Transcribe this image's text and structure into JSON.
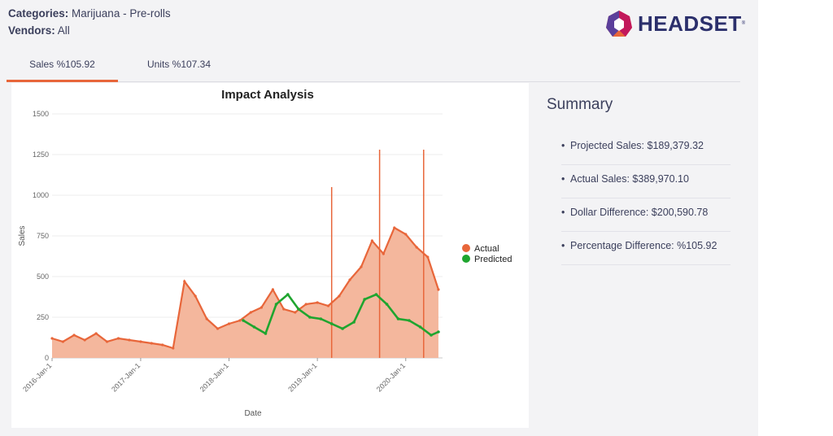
{
  "filters": {
    "categories_label": "Categories:",
    "categories_value": "Marijuana - Pre-rolls",
    "vendors_label": "Vendors:",
    "vendors_value": "All"
  },
  "brand": {
    "name": "HEADSET",
    "colors": [
      "#e8663a",
      "#c2185b",
      "#5b3f9b",
      "#2b2f6b"
    ]
  },
  "tabs": [
    {
      "label": "Sales %105.92",
      "active": true
    },
    {
      "label": "Units %107.34",
      "active": false
    }
  ],
  "summary": {
    "title": "Summary",
    "items": [
      "Projected Sales: $189,379.32",
      "Actual Sales: $389,970.10",
      "Dollar Difference: $200,590.78",
      "Percentage Difference: %105.92"
    ]
  },
  "colors": {
    "actual": "#e8663a",
    "actual_fill": "#f4b79d",
    "predicted": "#1fa52f",
    "accent": "#e8663a"
  },
  "chart_data": {
    "type": "area",
    "title": "Impact Analysis",
    "xlabel": "Date",
    "ylabel": "Sales",
    "ylim": [
      0,
      1500
    ],
    "yticks": [
      0,
      250,
      500,
      750,
      1000,
      1250,
      1500
    ],
    "xticks": [
      "2016-Jan-1",
      "2017-Jan-1",
      "2018-Jan-1",
      "2019-Jan-1",
      "2020-Jan-1"
    ],
    "xlim": [
      "2016-Jan-1",
      "2020-Jun-1"
    ],
    "legend_position": "right",
    "grid": true,
    "series": [
      {
        "name": "Actual",
        "type": "area",
        "x": [
          "2016-Jan-1",
          "2016-Feb-15",
          "2016-Apr-1",
          "2016-May-15",
          "2016-Jul-1",
          "2016-Aug-15",
          "2016-Oct-1",
          "2016-Nov-15",
          "2017-Jan-1",
          "2017-Feb-15",
          "2017-Apr-1",
          "2017-May-15",
          "2017-Jul-1",
          "2017-Aug-15",
          "2017-Oct-1",
          "2017-Nov-15",
          "2018-Jan-1",
          "2018-Feb-15",
          "2018-Apr-1",
          "2018-May-15",
          "2018-Jul-1",
          "2018-Aug-15",
          "2018-Oct-1",
          "2018-Nov-15",
          "2019-Jan-1",
          "2019-Feb-15",
          "2019-Apr-1",
          "2019-May-15",
          "2019-Jul-1",
          "2019-Aug-15",
          "2019-Oct-1",
          "2019-Nov-15",
          "2020-Jan-1",
          "2020-Feb-15",
          "2020-Apr-1",
          "2020-May-15"
        ],
        "y": [
          120,
          100,
          140,
          110,
          150,
          100,
          120,
          110,
          100,
          90,
          80,
          60,
          470,
          380,
          240,
          180,
          210,
          230,
          280,
          310,
          420,
          300,
          280,
          330,
          340,
          320,
          380,
          480,
          560,
          720,
          640,
          800,
          760,
          680,
          620,
          420
        ]
      },
      {
        "name": "Predicted",
        "type": "line",
        "x": [
          "2018-Mar-1",
          "2018-Apr-15",
          "2018-Jun-1",
          "2018-Jul-15",
          "2018-Sep-1",
          "2018-Oct-15",
          "2018-Dec-1",
          "2019-Jan-15",
          "2019-Mar-1",
          "2019-Apr-15",
          "2019-Jun-1",
          "2019-Jul-15",
          "2019-Sep-1",
          "2019-Oct-15",
          "2019-Dec-1",
          "2020-Jan-15",
          "2020-Mar-1",
          "2020-Apr-15",
          "2020-May-15"
        ],
        "y": [
          230,
          190,
          150,
          330,
          390,
          300,
          250,
          240,
          210,
          180,
          220,
          360,
          390,
          330,
          240,
          230,
          190,
          140,
          160
        ]
      }
    ],
    "peaks": [
      {
        "x": "2019-Mar-1",
        "y": 1050
      },
      {
        "x": "2019-Sep-15",
        "y": 1280
      },
      {
        "x": "2020-Mar-15",
        "y": 1280
      }
    ]
  }
}
